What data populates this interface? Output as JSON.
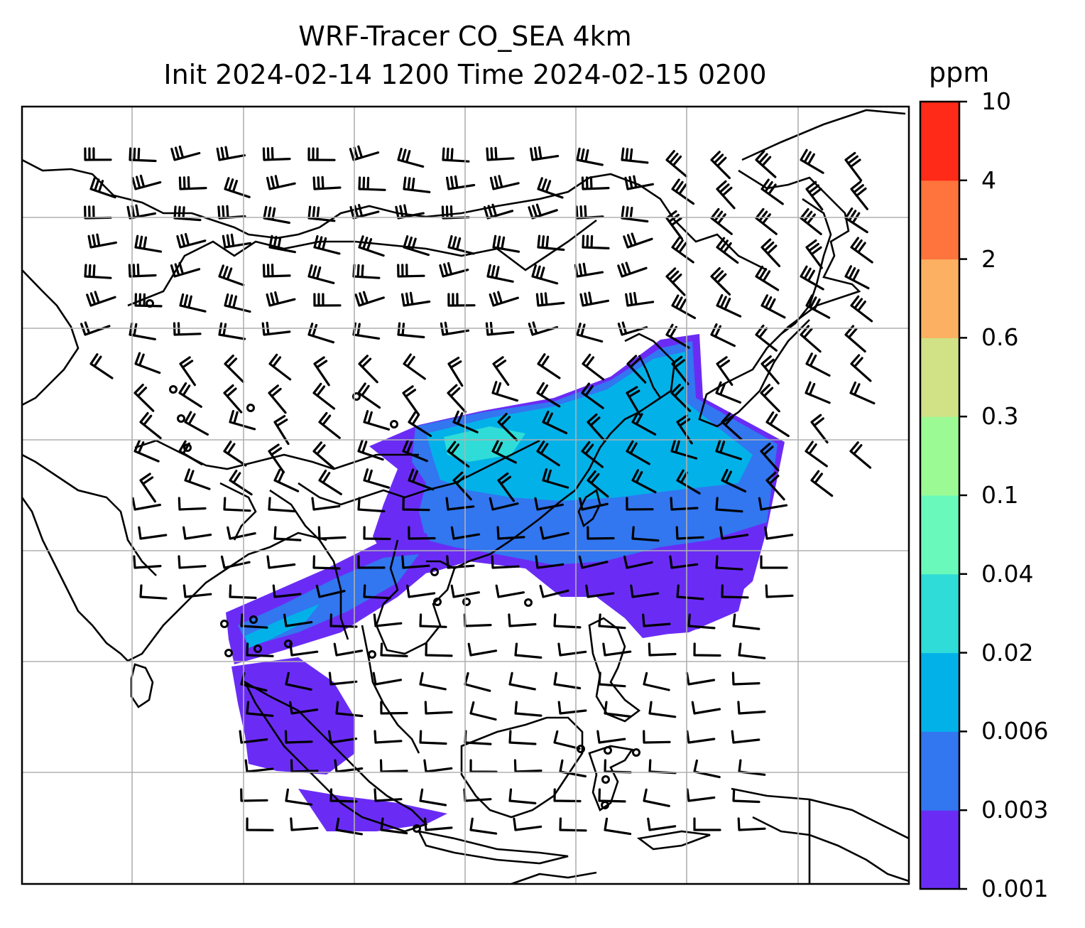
{
  "title": {
    "line1": "WRF-Tracer CO_SEA 4km",
    "line2": "Init 2024-02-14 1200 Time 2024-02-15 0200"
  },
  "colorbar": {
    "unit": "ppm",
    "levels": [
      "0.001",
      "0.003",
      "0.006",
      "0.02",
      "0.04",
      "0.1",
      "0.3",
      "0.6",
      "2",
      "4",
      "10"
    ],
    "colors": [
      "#6a2cf5",
      "#3276f0",
      "#03b1e9",
      "#2fdcd7",
      "#69f9bb",
      "#9cfa95",
      "#d1e185",
      "#fbb161",
      "#fe743c",
      "#ff2a18"
    ]
  },
  "map": {
    "plume_colors": {
      "lowest": "#6a2cf5",
      "low": "#3276f0",
      "mid": "#03b1e9",
      "high": "#2fdcd7",
      "peak": "#69f9bb"
    },
    "coastline_color": "#000000",
    "gridline_color": "#b0b0b0"
  }
}
